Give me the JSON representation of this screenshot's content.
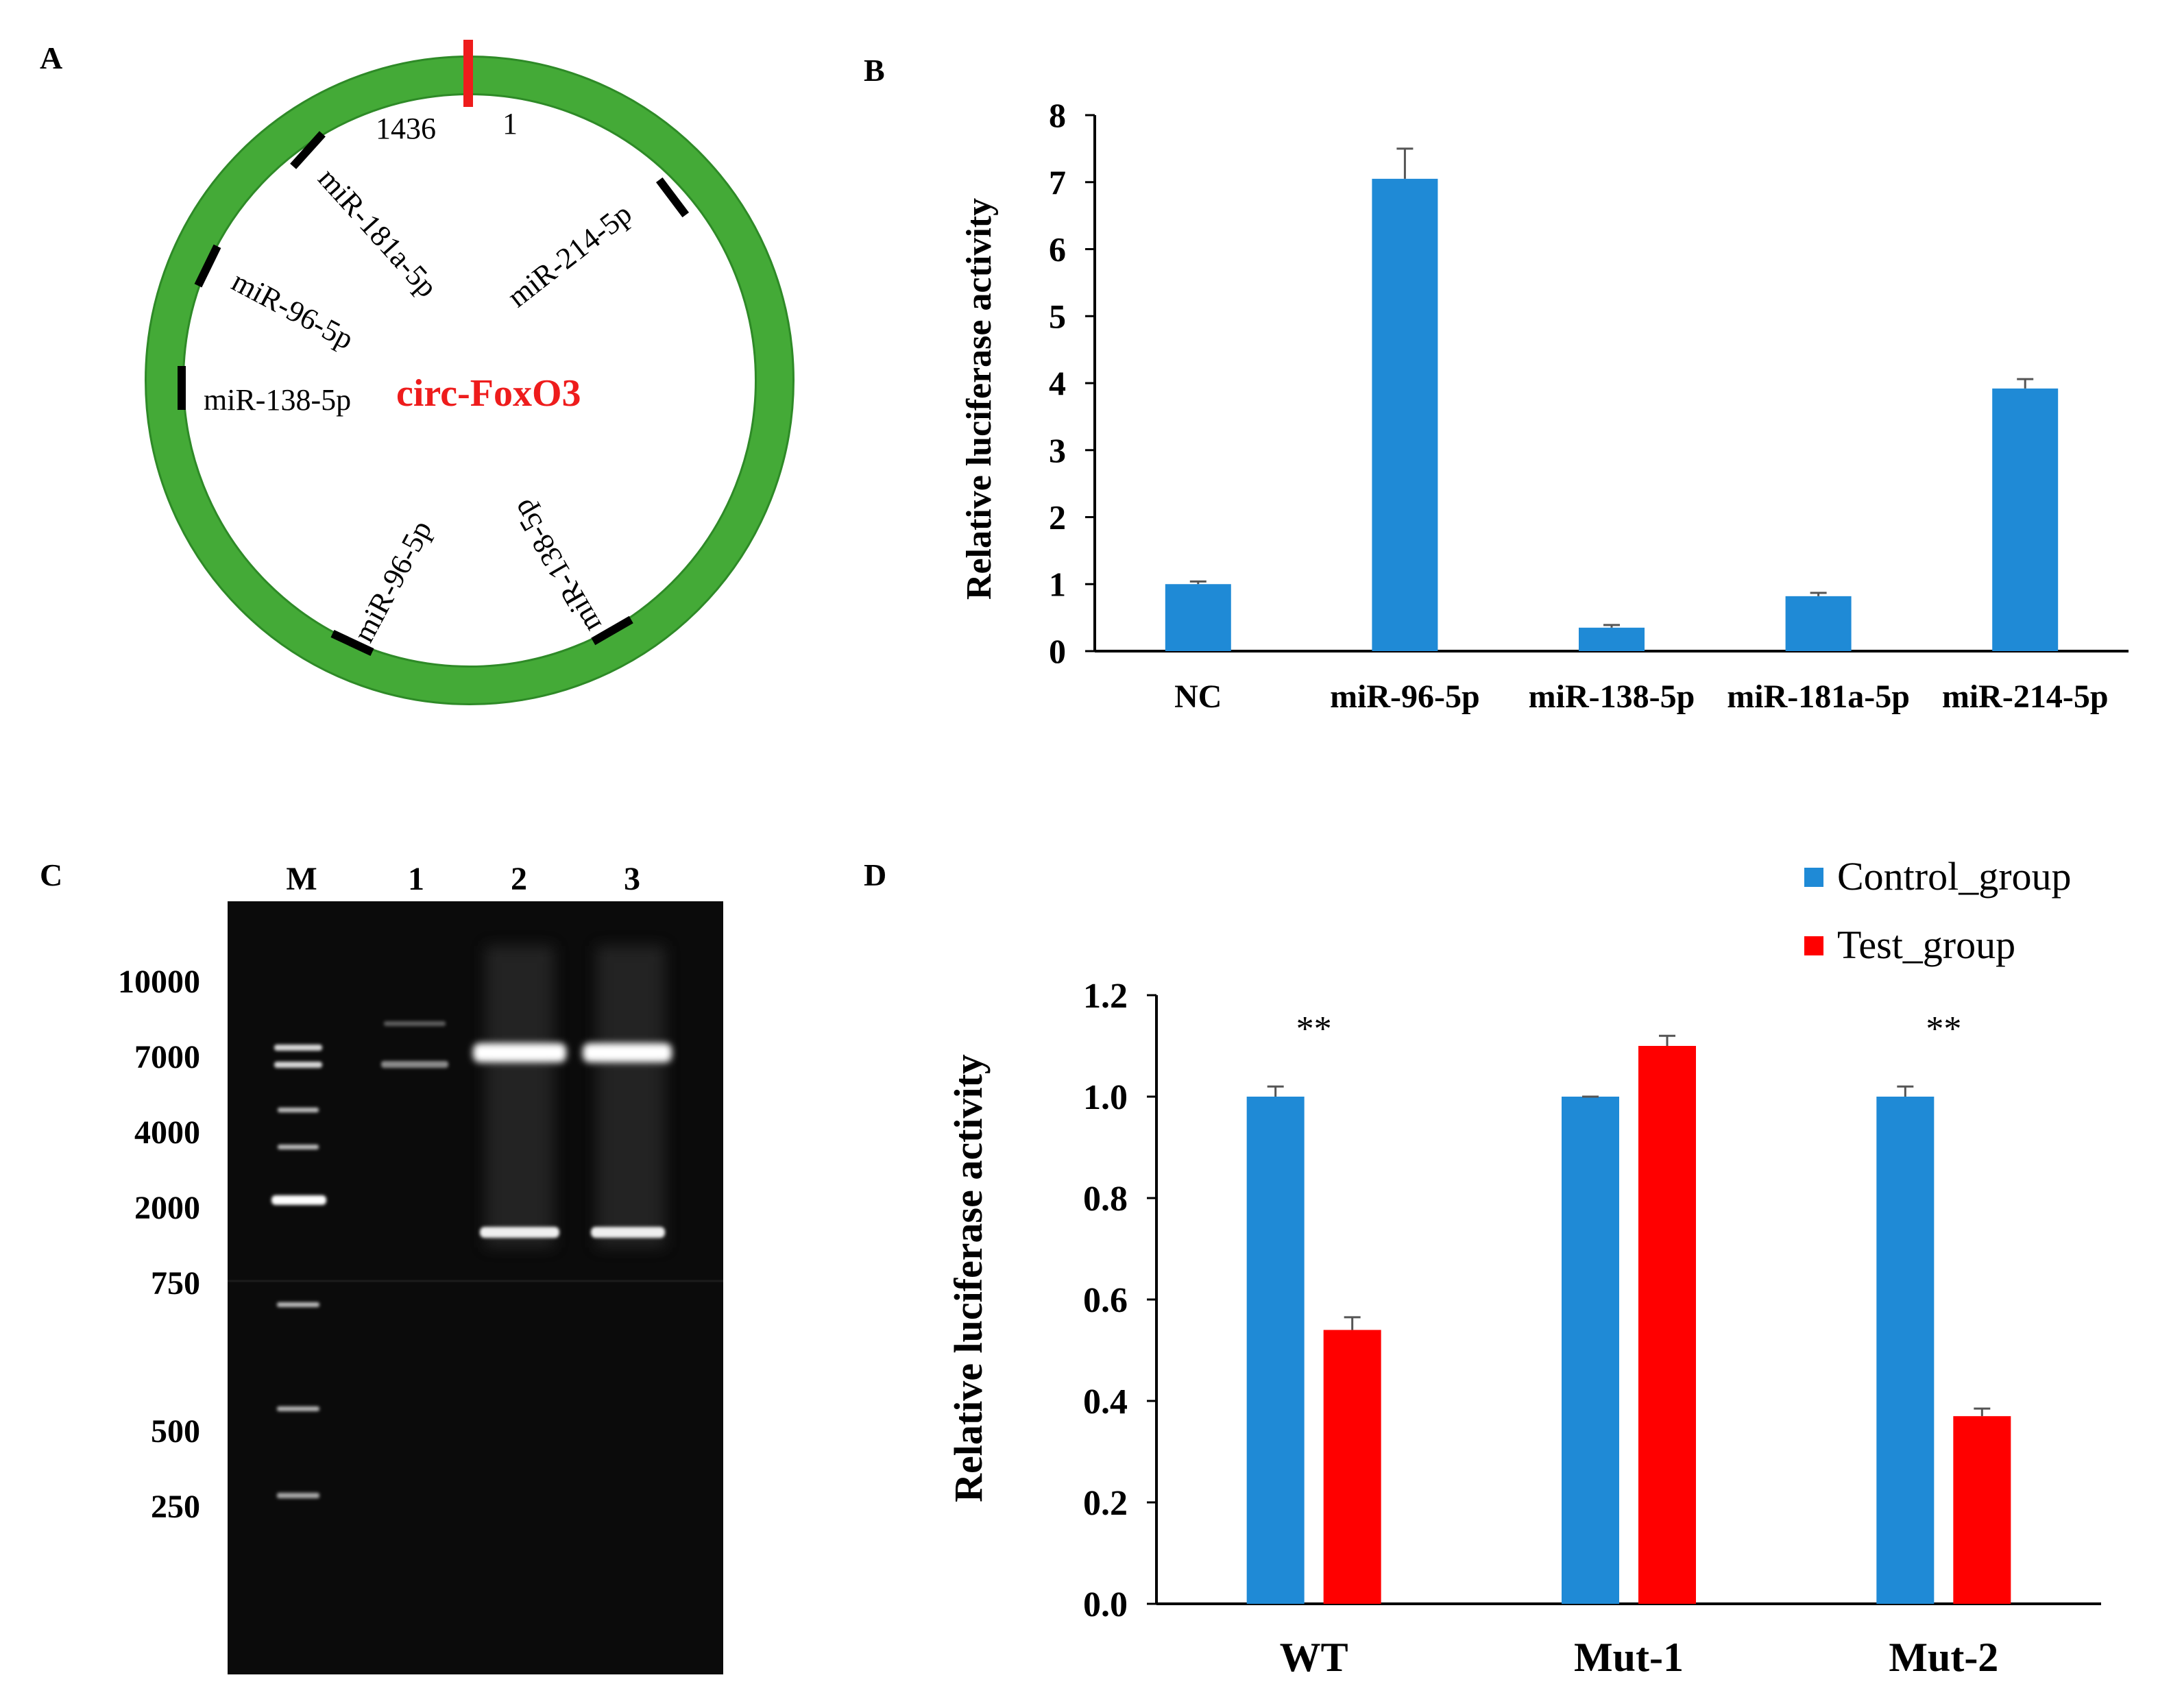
{
  "panels": {
    "a": {
      "letter": "A",
      "circle_label": "circ-FoxO3",
      "position_start": "1",
      "position_end": "1436",
      "sites": [
        {
          "label": "miR-181a-5p"
        },
        {
          "label": "miR-214-5p"
        },
        {
          "label": "miR-96-5p"
        },
        {
          "label": "miR-138-5p"
        },
        {
          "label": "miR-96-5p"
        },
        {
          "label": "miR-138-5p"
        }
      ],
      "colors": {
        "ring": "#44aa37",
        "ring_edge": "#2e8a27",
        "start_mark": "#ee1c1c",
        "label": "#ee1c1c",
        "site_mark": "#000000"
      }
    },
    "b": {
      "letter": "B"
    },
    "c": {
      "letter": "C",
      "lane_labels": [
        "M",
        "1",
        "2",
        "3"
      ],
      "marker_labels": [
        "10000",
        "7000",
        "4000",
        "2000",
        "750",
        "500",
        "250"
      ]
    },
    "d": {
      "letter": "D",
      "significance": [
        "**",
        "",
        "**"
      ]
    }
  },
  "chart_data": [
    {
      "panel": "B",
      "type": "bar",
      "title": "",
      "xlabel": "",
      "ylabel": "Relative luciferase activity",
      "ylim": [
        0,
        8
      ],
      "yticks": [
        "0",
        "1",
        "2",
        "3",
        "4",
        "5",
        "6",
        "7",
        "8"
      ],
      "categories": [
        "NC",
        "miR-96-5p",
        "miR-138-5p",
        "miR-181a-5p",
        "miR-214-5p"
      ],
      "values": [
        1.0,
        7.05,
        0.35,
        0.82,
        3.92
      ],
      "errors": [
        0.04,
        0.45,
        0.04,
        0.05,
        0.14
      ],
      "color": "#1f8ad6",
      "grid": false
    },
    {
      "panel": "D",
      "type": "bar",
      "title": "",
      "xlabel": "",
      "ylabel": "Relative luciferase activity",
      "ylim": [
        0,
        1.2
      ],
      "yticks": [
        "0.0",
        "0.2",
        "0.4",
        "0.6",
        "0.8",
        "1.0",
        "1.2"
      ],
      "categories": [
        "WT",
        "Mut-1",
        "Mut-2"
      ],
      "series": [
        {
          "name": "Control_group",
          "color": "#1f8ad6",
          "values": [
            1.0,
            1.0,
            1.0
          ],
          "errors": [
            0.02,
            0.0,
            0.02
          ]
        },
        {
          "name": "Test_group",
          "color": "#ff0000",
          "values": [
            0.54,
            1.1,
            0.37
          ],
          "errors": [
            0.025,
            0.02,
            0.015
          ]
        }
      ],
      "legend": "top-right",
      "grid": false
    }
  ]
}
